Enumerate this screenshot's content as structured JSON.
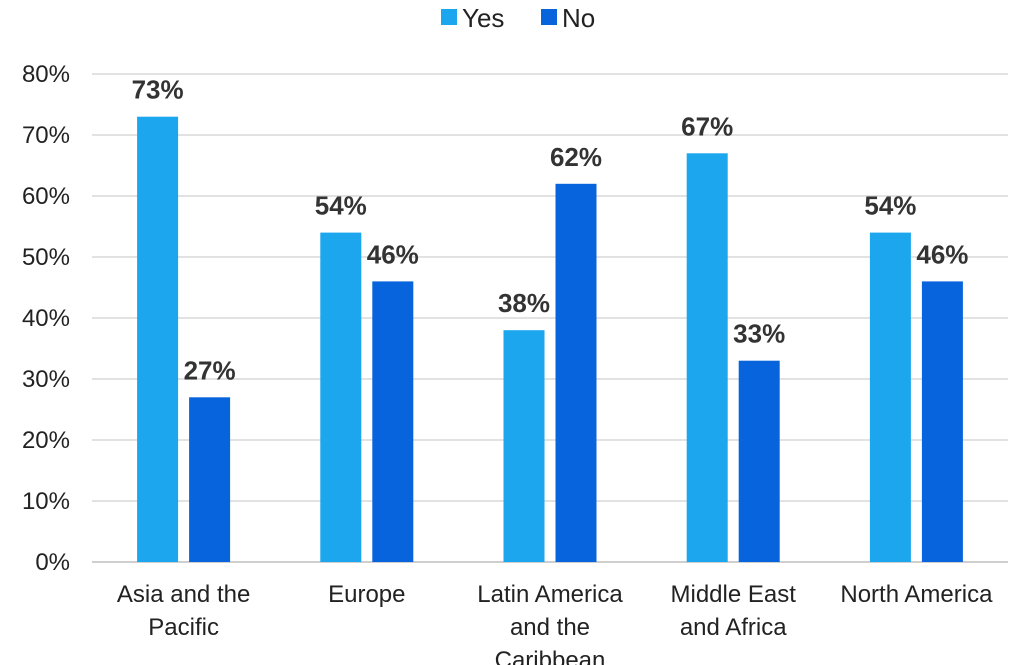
{
  "chart_data": {
    "type": "bar",
    "title": "",
    "xlabel": "",
    "ylabel": "",
    "categories": [
      [
        "Asia and the",
        "Pacific"
      ],
      [
        "Europe"
      ],
      [
        "Latin America",
        "and the",
        "Caribbean"
      ],
      [
        "Middle East",
        "and Africa"
      ],
      [
        "North America"
      ]
    ],
    "series": [
      {
        "name": "Yes",
        "color": "#1ba6ee",
        "values": [
          73,
          54,
          38,
          67,
          54
        ],
        "labels": [
          "73%",
          "54%",
          "38%",
          "67%",
          "54%"
        ]
      },
      {
        "name": "No",
        "color": "#0764dc",
        "values": [
          27,
          46,
          62,
          33,
          46
        ],
        "labels": [
          "27%",
          "46%",
          "62%",
          "33%",
          "46%"
        ]
      }
    ],
    "ylim": [
      0,
      80
    ],
    "yticks": [
      0,
      10,
      20,
      30,
      40,
      50,
      60,
      70,
      80
    ],
    "ytick_labels": [
      "0%",
      "10%",
      "20%",
      "30%",
      "40%",
      "50%",
      "60%",
      "70%",
      "80%"
    ],
    "grid": true,
    "gridline_color": "#d9d9d9",
    "legend_position": "top-center"
  }
}
